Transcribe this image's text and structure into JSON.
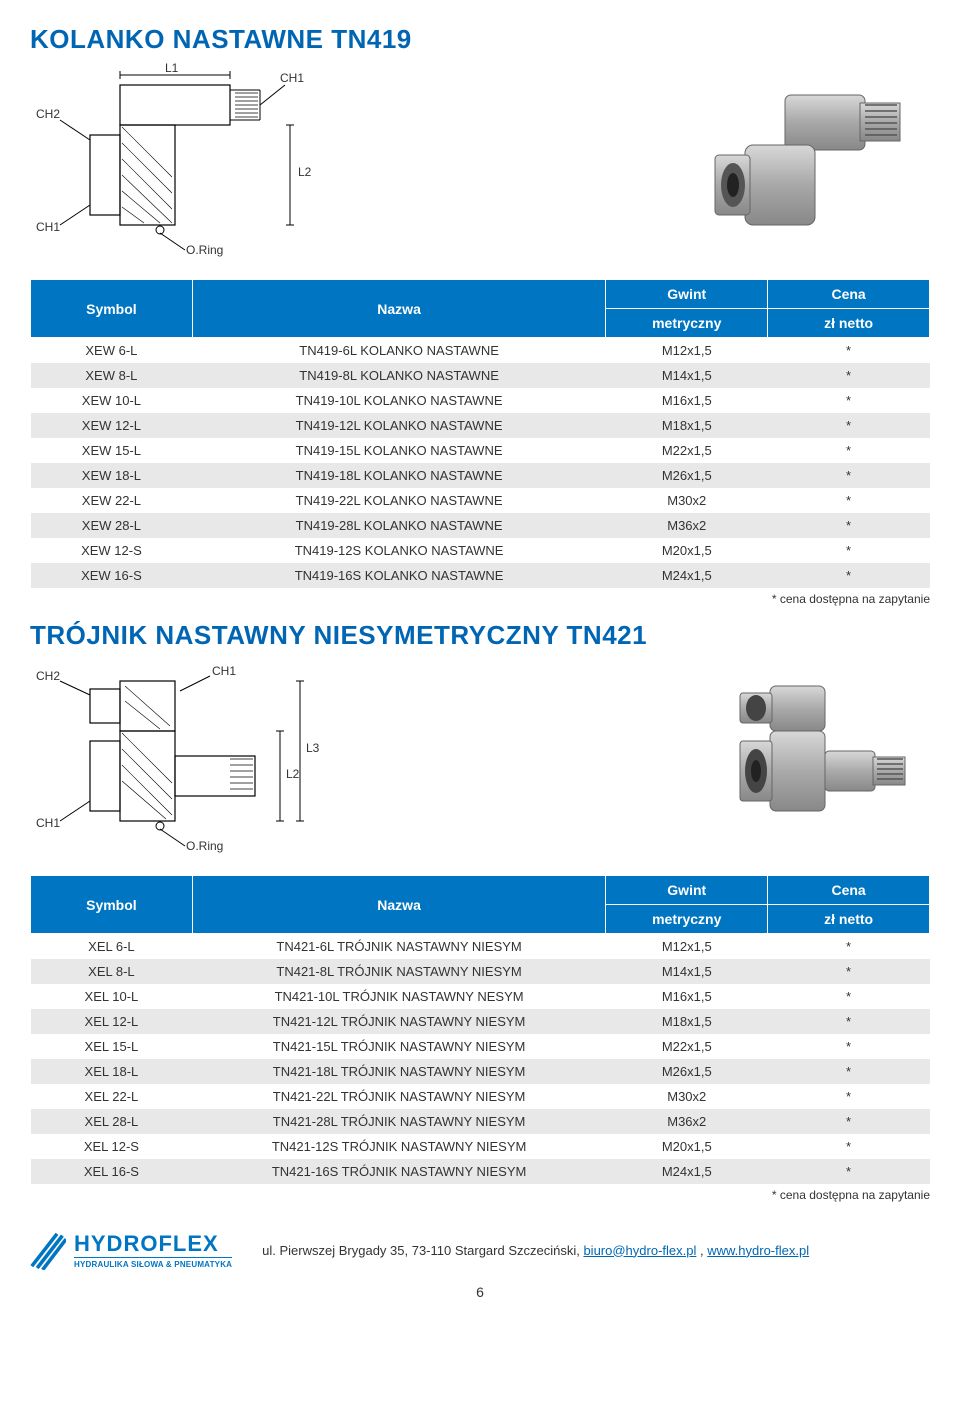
{
  "colors": {
    "header_bg": "#0075c2",
    "header_text": "#ffffff",
    "row_even": "#e8e8e8",
    "row_odd": "#ffffff",
    "title_color": "#0066b3",
    "link_color": "#0066b3",
    "text_color": "#333333"
  },
  "section1": {
    "title": "KOLANKO NASTAWNE TN419",
    "diagram_labels": {
      "L1": "L1",
      "L2": "L2",
      "CH1_top": "CH1",
      "CH2": "CH2",
      "CH1_left": "CH1",
      "oring": "O.Ring"
    }
  },
  "section2": {
    "title": "TRÓJNIK NASTAWNY NIESYMETRYCZNY TN421",
    "diagram_labels": {
      "L2": "L2",
      "L3": "L3",
      "CH1_top": "CH1",
      "CH2": "CH2",
      "CH1_left": "CH1",
      "oring": "O.Ring"
    }
  },
  "table_headers": {
    "symbol": "Symbol",
    "nazwa": "Nazwa",
    "gwint": "Gwint",
    "gwint_sub": "metryczny",
    "cena": "Cena",
    "cena_sub": "zł netto"
  },
  "table1_rows": [
    {
      "symbol": "XEW 6-L",
      "name": "TN419-6L KOLANKO NASTAWNE",
      "gwint": "M12x1,5",
      "cena": "*"
    },
    {
      "symbol": "XEW 8-L",
      "name": "TN419-8L KOLANKO NASTAWNE",
      "gwint": "M14x1,5",
      "cena": "*"
    },
    {
      "symbol": "XEW 10-L",
      "name": "TN419-10L KOLANKO NASTAWNE",
      "gwint": "M16x1,5",
      "cena": "*"
    },
    {
      "symbol": "XEW 12-L",
      "name": "TN419-12L KOLANKO NASTAWNE",
      "gwint": "M18x1,5",
      "cena": "*"
    },
    {
      "symbol": "XEW 15-L",
      "name": "TN419-15L KOLANKO NASTAWNE",
      "gwint": "M22x1,5",
      "cena": "*"
    },
    {
      "symbol": "XEW 18-L",
      "name": "TN419-18L KOLANKO NASTAWNE",
      "gwint": "M26x1,5",
      "cena": "*"
    },
    {
      "symbol": "XEW 22-L",
      "name": "TN419-22L KOLANKO NASTAWNE",
      "gwint": "M30x2",
      "cena": "*"
    },
    {
      "symbol": "XEW 28-L",
      "name": "TN419-28L KOLANKO NASTAWNE",
      "gwint": "M36x2",
      "cena": "*"
    },
    {
      "symbol": "XEW 12-S",
      "name": "TN419-12S KOLANKO NASTAWNE",
      "gwint": "M20x1,5",
      "cena": "*"
    },
    {
      "symbol": "XEW 16-S",
      "name": "TN419-16S KOLANKO NASTAWNE",
      "gwint": "M24x1,5",
      "cena": "*"
    }
  ],
  "table2_rows": [
    {
      "symbol": "XEL 6-L",
      "name": "TN421-6L TRÓJNIK NASTAWNY NIESYM",
      "gwint": "M12x1,5",
      "cena": "*"
    },
    {
      "symbol": "XEL 8-L",
      "name": "TN421-8L TRÓJNIK NASTAWNY NIESYM",
      "gwint": "M14x1,5",
      "cena": "*"
    },
    {
      "symbol": "XEL 10-L",
      "name": "TN421-10L TRÓJNIK NASTAWNY NESYM",
      "gwint": "M16x1,5",
      "cena": "*"
    },
    {
      "symbol": "XEL 12-L",
      "name": "TN421-12L TRÓJNIK NASTAWNY NIESYM",
      "gwint": "M18x1,5",
      "cena": "*"
    },
    {
      "symbol": "XEL 15-L",
      "name": "TN421-15L TRÓJNIK NASTAWNY NIESYM",
      "gwint": "M22x1,5",
      "cena": "*"
    },
    {
      "symbol": "XEL 18-L",
      "name": "TN421-18L TRÓJNIK NASTAWNY NIESYM",
      "gwint": "M26x1,5",
      "cena": "*"
    },
    {
      "symbol": "XEL 22-L",
      "name": "TN421-22L TRÓJNIK NASTAWNY NIESYM",
      "gwint": "M30x2",
      "cena": "*"
    },
    {
      "symbol": "XEL 28-L",
      "name": "TN421-28L TRÓJNIK NASTAWNY NIESYM",
      "gwint": "M36x2",
      "cena": "*"
    },
    {
      "symbol": "XEL 12-S",
      "name": "TN421-12S TRÓJNIK NASTAWNY NIESYM",
      "gwint": "M20x1,5",
      "cena": "*"
    },
    {
      "symbol": "XEL 16-S",
      "name": "TN421-16S TRÓJNIK NASTAWNY NIESYM",
      "gwint": "M24x1,5",
      "cena": "*"
    }
  ],
  "footnote": "* cena dostępna na zapytanie",
  "footer": {
    "logo_main": "HYDROFLEX",
    "logo_sub": "HYDRAULIKA SIŁOWA & PNEUMATYKA",
    "address_prefix": "ul. Pierwszej Brygady 35, 73-110 Stargard Szczeciński, ",
    "email": "biuro@hydro-flex.pl",
    "separator": " , ",
    "url": "www.hydro-flex.pl"
  },
  "page_number": "6"
}
